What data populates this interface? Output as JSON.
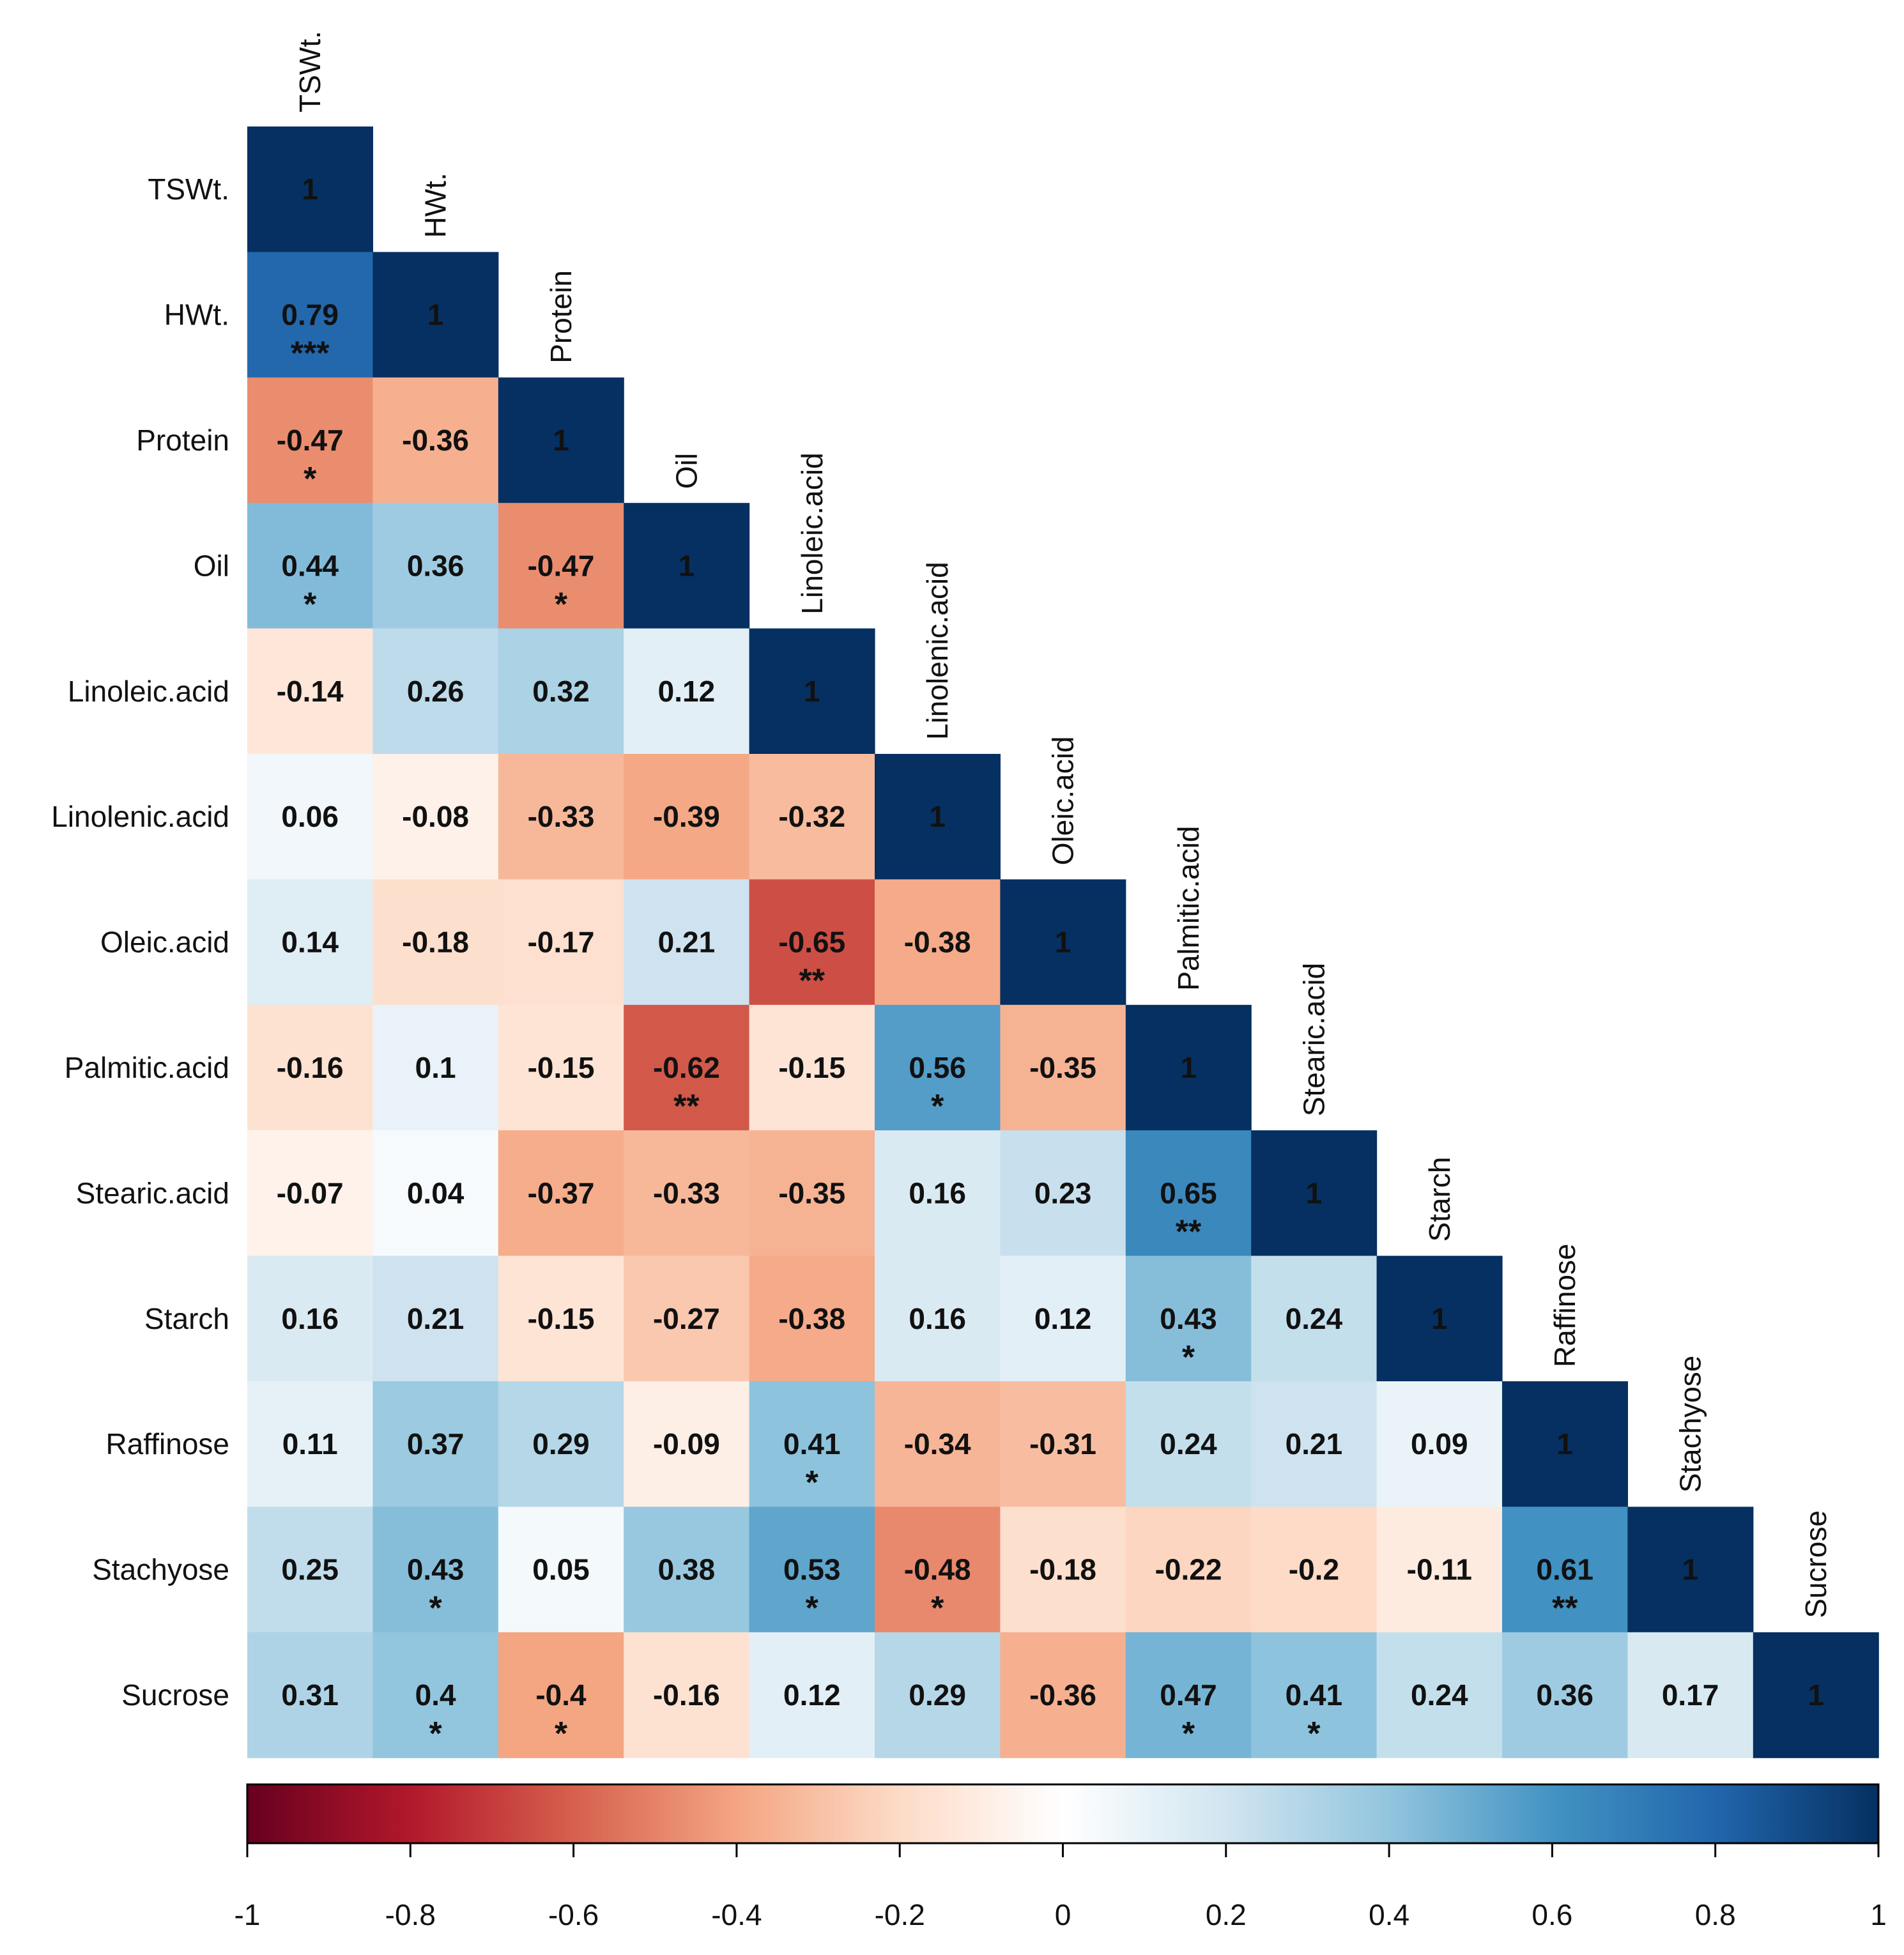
{
  "chart_data": {
    "type": "heatmap",
    "title": "",
    "variables": [
      "TSWt.",
      "HWt.",
      "Protein",
      "Oil",
      "Linoleic.acid",
      "Linolenic.acid",
      "Oleic.acid",
      "Palmitic.acid",
      "Stearic.acid",
      "Starch",
      "Raffinose",
      "Stachyose",
      "Sucrose"
    ],
    "shape": "lower-triangle",
    "matrix": [
      [
        "1"
      ],
      [
        "0.79",
        "1"
      ],
      [
        "-0.47",
        "-0.36",
        "1"
      ],
      [
        "0.44",
        "0.36",
        "-0.47",
        "1"
      ],
      [
        "-0.14",
        "0.26",
        "0.32",
        "0.12",
        "1"
      ],
      [
        "0.06",
        "-0.08",
        "-0.33",
        "-0.39",
        "-0.32",
        "1"
      ],
      [
        "0.14",
        "-0.18",
        "-0.17",
        "0.21",
        "-0.65",
        "-0.38",
        "1"
      ],
      [
        "-0.16",
        "0.1",
        "-0.15",
        "-0.62",
        "-0.15",
        "0.56",
        "-0.35",
        "1"
      ],
      [
        "-0.07",
        "0.04",
        "-0.37",
        "-0.33",
        "-0.35",
        "0.16",
        "0.23",
        "0.65",
        "1"
      ],
      [
        "0.16",
        "0.21",
        "-0.15",
        "-0.27",
        "-0.38",
        "0.16",
        "0.12",
        "0.43",
        "0.24",
        "1"
      ],
      [
        "0.11",
        "0.37",
        "0.29",
        "-0.09",
        "0.41",
        "-0.34",
        "-0.31",
        "0.24",
        "0.21",
        "0.09",
        "1"
      ],
      [
        "0.25",
        "0.43",
        "0.05",
        "0.38",
        "0.53",
        "-0.48",
        "-0.18",
        "-0.22",
        "-0.2",
        "-0.11",
        "0.61",
        "1"
      ],
      [
        "0.31",
        "0.4",
        "-0.4",
        "-0.16",
        "0.12",
        "0.29",
        "-0.36",
        "0.47",
        "0.41",
        "0.24",
        "0.36",
        "0.17",
        "1"
      ]
    ],
    "significance": [
      [
        ""
      ],
      [
        "***",
        ""
      ],
      [
        "*",
        "",
        ""
      ],
      [
        "*",
        "",
        "*",
        ""
      ],
      [
        "",
        "",
        "",
        "",
        ""
      ],
      [
        "",
        "",
        "",
        "",
        "",
        ""
      ],
      [
        "",
        "",
        "",
        "",
        "**",
        "",
        ""
      ],
      [
        "",
        "",
        "",
        "**",
        "",
        "*",
        "",
        ""
      ],
      [
        "",
        "",
        "",
        "",
        "",
        "",
        "",
        "**",
        ""
      ],
      [
        "",
        "",
        "",
        "",
        "",
        "",
        "",
        "*",
        "",
        ""
      ],
      [
        "",
        "",
        "",
        "",
        "*",
        "",
        "",
        "",
        "",
        "",
        ""
      ],
      [
        "",
        "*",
        "",
        "",
        "*",
        "*",
        "",
        "",
        "",
        "",
        "**",
        ""
      ],
      [
        "",
        "*",
        "*",
        "",
        "",
        "",
        "",
        "*",
        "*",
        "",
        "",
        "",
        ""
      ]
    ],
    "colorbar": {
      "range": [
        -1,
        1
      ],
      "ticks": [
        "-1",
        "-0.8",
        "-0.6",
        "-0.4",
        "-0.2",
        "0",
        "0.2",
        "0.4",
        "0.6",
        "0.8",
        "1"
      ],
      "colors": [
        "#67001f",
        "#b2182b",
        "#d6604d",
        "#f4a582",
        "#fddbc7",
        "#ffffff",
        "#d1e5f0",
        "#92c5de",
        "#4393c3",
        "#2166ac",
        "#053061"
      ]
    }
  }
}
